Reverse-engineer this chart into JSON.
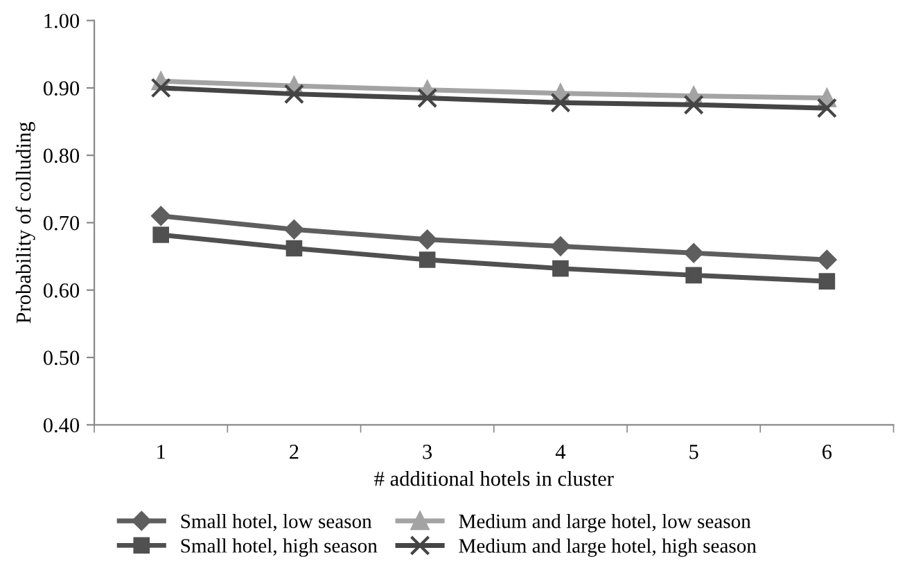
{
  "chart_data": {
    "type": "line",
    "xlabel": "# additional hotels in cluster",
    "ylabel": "Probability of colluding",
    "categories": [
      "1",
      "2",
      "3",
      "4",
      "5",
      "6"
    ],
    "ylim": [
      0.4,
      1.0
    ],
    "yticks": [
      {
        "value": 0.4,
        "label": "0.40"
      },
      {
        "value": 0.5,
        "label": "0.50"
      },
      {
        "value": 0.6,
        "label": "0.60"
      },
      {
        "value": 0.7,
        "label": "0.70"
      },
      {
        "value": 0.8,
        "label": "0.80"
      },
      {
        "value": 0.9,
        "label": "0.90"
      },
      {
        "value": 1.0,
        "label": "1.00"
      }
    ],
    "grid": false,
    "legend": "bottom",
    "series": [
      {
        "name": "Small hotel, low season",
        "color": "#5e5e5e",
        "marker": "diamond",
        "values": [
          0.71,
          0.69,
          0.675,
          0.665,
          0.655,
          0.645
        ]
      },
      {
        "name": "Small hotel, high season",
        "color": "#505050",
        "marker": "square",
        "values": [
          0.682,
          0.662,
          0.645,
          0.632,
          0.622,
          0.613
        ]
      },
      {
        "name": "Medium and large hotel, low season",
        "color": "#a3a3a3",
        "marker": "triangle",
        "values": [
          0.91,
          0.903,
          0.897,
          0.892,
          0.888,
          0.885
        ]
      },
      {
        "name": "Medium and large hotel, high season",
        "color": "#454545",
        "marker": "cross",
        "values": [
          0.9,
          0.891,
          0.885,
          0.878,
          0.875,
          0.87
        ]
      }
    ]
  }
}
